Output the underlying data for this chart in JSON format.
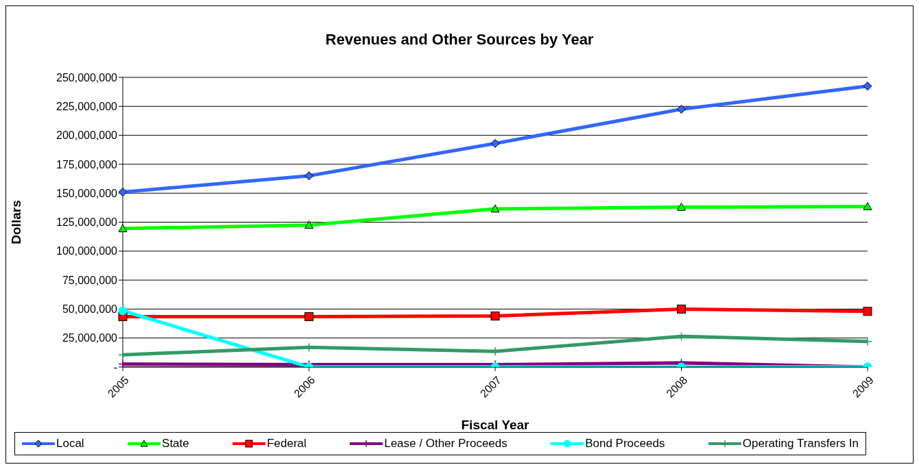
{
  "chart_data": {
    "type": "line",
    "title": "Revenues and Other Sources by Year",
    "xlabel": "Fiscal Year",
    "ylabel": "Dollars",
    "categories": [
      "2005",
      "2006",
      "2007",
      "2008",
      "2009"
    ],
    "series": [
      {
        "name": "Local",
        "color": "#3366ff",
        "marker": "diamond",
        "values": [
          151000000,
          165000000,
          193000000,
          222500000,
          242500000
        ]
      },
      {
        "name": "State",
        "color": "#00ff00",
        "marker": "triangle",
        "values": [
          119500000,
          122500000,
          136500000,
          138000000,
          138500000
        ]
      },
      {
        "name": "Federal",
        "color": "#ff0000",
        "marker": "square",
        "values": [
          43500000,
          43500000,
          44000000,
          50000000,
          48000000
        ]
      },
      {
        "name": "Lease / Other Proceeds",
        "color": "#800080",
        "marker": "cross",
        "values": [
          2500000,
          2000000,
          2000000,
          3500000,
          0
        ]
      },
      {
        "name": "Bond Proceeds",
        "color": "#00ffff",
        "marker": "circle",
        "values": [
          48500000,
          0,
          0,
          0,
          0
        ]
      },
      {
        "name": "Operating Transfers In",
        "color": "#339966",
        "marker": "cross",
        "values": [
          10500000,
          17000000,
          13500000,
          26500000,
          22000000
        ]
      }
    ],
    "ylim": [
      0,
      250000000
    ],
    "yticks": [
      {
        "value": 0,
        "label": "-"
      },
      {
        "value": 25000000,
        "label": "25,000,000"
      },
      {
        "value": 50000000,
        "label": "50,000,000"
      },
      {
        "value": 75000000,
        "label": "75,000,000"
      },
      {
        "value": 100000000,
        "label": "100,000,000"
      },
      {
        "value": 125000000,
        "label": "125,000,000"
      },
      {
        "value": 150000000,
        "label": "150,000,000"
      },
      {
        "value": 175000000,
        "label": "175,000,000"
      },
      {
        "value": 200000000,
        "label": "200,000,000"
      },
      {
        "value": 225000000,
        "label": "225,000,000"
      },
      {
        "value": 250000000,
        "label": "250,000,000"
      }
    ],
    "grid": "y",
    "legend": "bottom",
    "line_style": "solid"
  }
}
